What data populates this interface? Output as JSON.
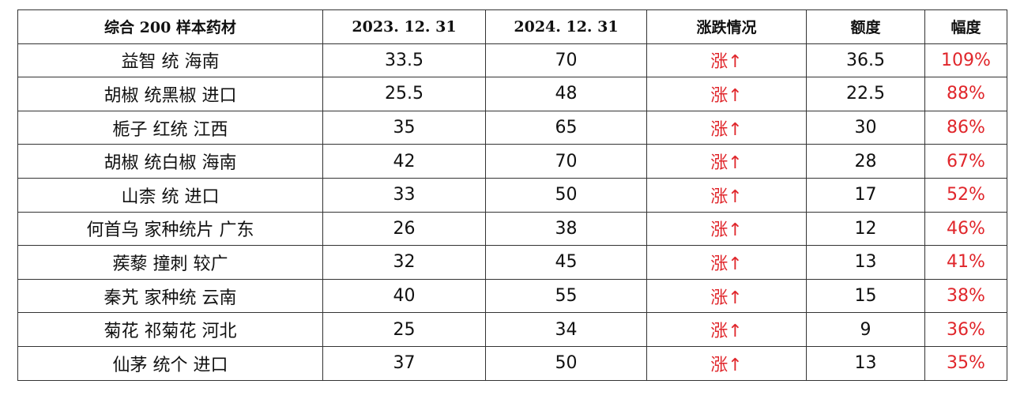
{
  "table": {
    "header": [
      "综合 200 样本药材",
      "2023. 12. 31",
      "2024. 12. 31",
      "涨跌情况",
      "额度",
      "幅度"
    ],
    "rows": [
      [
        "益智 统 海南",
        "33.5",
        "70",
        "涨↑",
        "36.5",
        "109%"
      ],
      [
        "胡椒 统黑椒 进口",
        "25.5",
        "48",
        "涨↑",
        "22.5",
        "88%"
      ],
      [
        "栀子 红统 江西",
        "35",
        "65",
        "涨↑",
        "30",
        "86%"
      ],
      [
        "胡椒 统白椒 海南",
        "42",
        "70",
        "涨↑",
        "28",
        "67%"
      ],
      [
        "山柰 统 进口",
        "33",
        "50",
        "涨↑",
        "17",
        "52%"
      ],
      [
        "何首乌 家种统片 广东",
        "26",
        "38",
        "涨↑",
        "12",
        "46%"
      ],
      [
        "蒺藜 撞刺 较广",
        "32",
        "45",
        "涨↑",
        "13",
        "41%"
      ],
      [
        "秦艽 家种统 云南",
        "40",
        "55",
        "涨↑",
        "15",
        "38%"
      ],
      [
        "菊花 祁菊花 河北",
        "25",
        "34",
        "涨↑",
        "9",
        "36%"
      ],
      [
        "仙茅 统个 进口",
        "37",
        "50",
        "涨↑",
        "13",
        "35%"
      ]
    ]
  }
}
